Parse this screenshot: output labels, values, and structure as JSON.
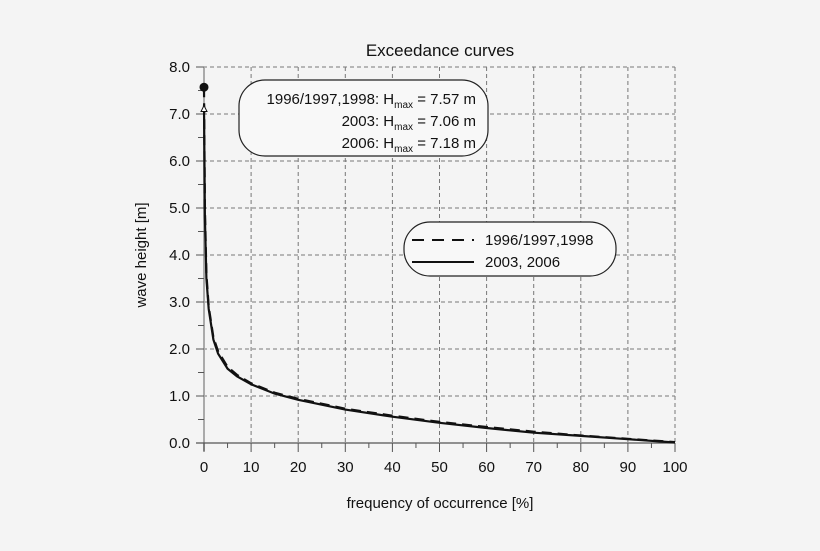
{
  "chart_data": {
    "type": "line",
    "title": "Exceedance curves",
    "xlabel": "frequency of occurrence [%]",
    "ylabel": "wave height [m]",
    "xlim": [
      0,
      100
    ],
    "ylim": [
      0,
      8
    ],
    "xticks": [
      "0",
      "10",
      "20",
      "30",
      "40",
      "50",
      "60",
      "70",
      "80",
      "90",
      "100"
    ],
    "yticks": [
      "0.0",
      "1.0",
      "2.0",
      "3.0",
      "4.0",
      "5.0",
      "6.0",
      "7.0",
      "8.0"
    ],
    "grid": true,
    "legend_position": "right",
    "series": [
      {
        "name": "1996/1997,1998",
        "style": "dashed",
        "x": [
          0,
          0.2,
          0.5,
          1,
          2,
          3,
          5,
          7,
          10,
          15,
          20,
          30,
          40,
          50,
          60,
          70,
          80,
          90,
          100
        ],
        "y": [
          7.57,
          5.0,
          3.6,
          2.9,
          2.25,
          1.95,
          1.62,
          1.45,
          1.27,
          1.07,
          0.94,
          0.73,
          0.58,
          0.45,
          0.34,
          0.24,
          0.16,
          0.09,
          0.02
        ]
      },
      {
        "name": "2003, 2006",
        "style": "solid",
        "x": [
          0,
          0.2,
          0.5,
          1,
          2,
          3,
          5,
          7,
          10,
          15,
          20,
          30,
          40,
          50,
          60,
          70,
          80,
          90,
          100
        ],
        "y": [
          7.18,
          4.8,
          3.5,
          2.85,
          2.2,
          1.9,
          1.58,
          1.42,
          1.25,
          1.05,
          0.92,
          0.71,
          0.56,
          0.43,
          0.32,
          0.22,
          0.15,
          0.08,
          0.01
        ]
      }
    ],
    "annotations": {
      "lines": [
        {
          "label": "1996/1997,1998: H",
          "sub": "max",
          "value": " = 7.57 m"
        },
        {
          "label": "2003: H",
          "sub": "max",
          "value": " = 7.06 m"
        },
        {
          "label": "2006: H",
          "sub": "max",
          "value": " = 7.18 m"
        }
      ],
      "max_point": 7.57
    }
  }
}
